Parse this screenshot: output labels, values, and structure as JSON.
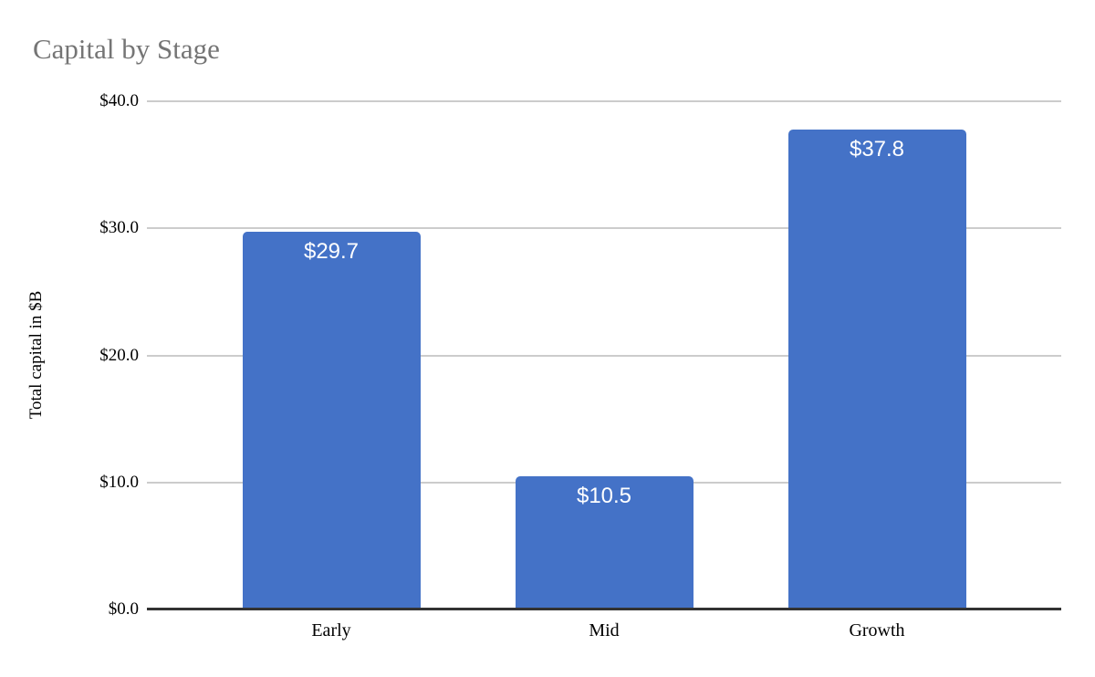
{
  "chart_data": {
    "type": "bar",
    "title": "Capital by Stage",
    "categories": [
      "Early",
      "Mid",
      "Growth"
    ],
    "values": [
      29.7,
      10.5,
      37.8
    ],
    "value_labels": [
      "$29.7",
      "$10.5",
      "$37.8"
    ],
    "xlabel": "",
    "ylabel": "Total capital in $B",
    "ylim": [
      0,
      40
    ],
    "yticks": [
      0,
      10,
      20,
      30,
      40
    ],
    "ytick_labels": [
      "$0.0",
      "$10.0",
      "$20.0",
      "$30.0",
      "$40.0"
    ],
    "grid": true,
    "legend": "none"
  },
  "colors": {
    "bar": "#4472c7",
    "bar_label": "#ffffff",
    "gridline": "#cccccc",
    "axis_line": "#333333",
    "title_text": "#757575",
    "tick_text": "#000000",
    "background": "#ffffff"
  }
}
